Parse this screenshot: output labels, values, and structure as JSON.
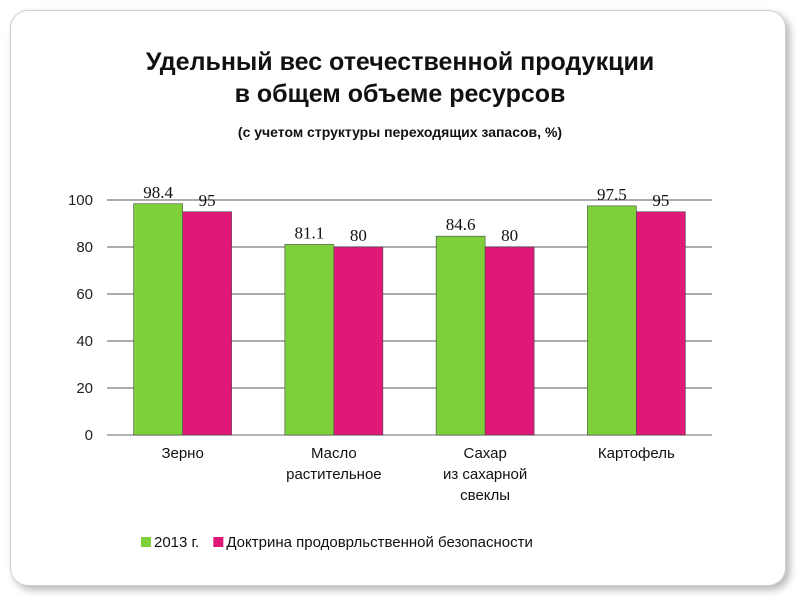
{
  "slide": {
    "title_line1": "Удельный вес отечественной продукции",
    "title_line2": "в общем объеме ресурсов",
    "subtitle": "(с учетом структуры переходящих запасов, %)"
  },
  "chart_data": {
    "type": "bar",
    "categories": [
      [
        "Зерно"
      ],
      [
        "Масло",
        "растительное"
      ],
      [
        "Сахар",
        "из сахарной",
        "свеклы"
      ],
      [
        "Картофель"
      ]
    ],
    "series": [
      {
        "name": "2013 г.",
        "values": [
          98.4,
          81.1,
          84.6,
          97.5
        ],
        "color": "#7ed03a",
        "labels": [
          "98.4",
          "81.1",
          "84.6",
          "97.5"
        ]
      },
      {
        "name": "Доктрина продоврльственной безопасности",
        "values": [
          95,
          80,
          80,
          95
        ],
        "color": "#e21878",
        "labels": [
          "95",
          "80",
          "80",
          "95"
        ]
      }
    ],
    "ylim": [
      0,
      100
    ],
    "yticks": [
      0,
      20,
      40,
      60,
      80,
      100
    ],
    "grid": true,
    "legend_position": "bottom"
  }
}
